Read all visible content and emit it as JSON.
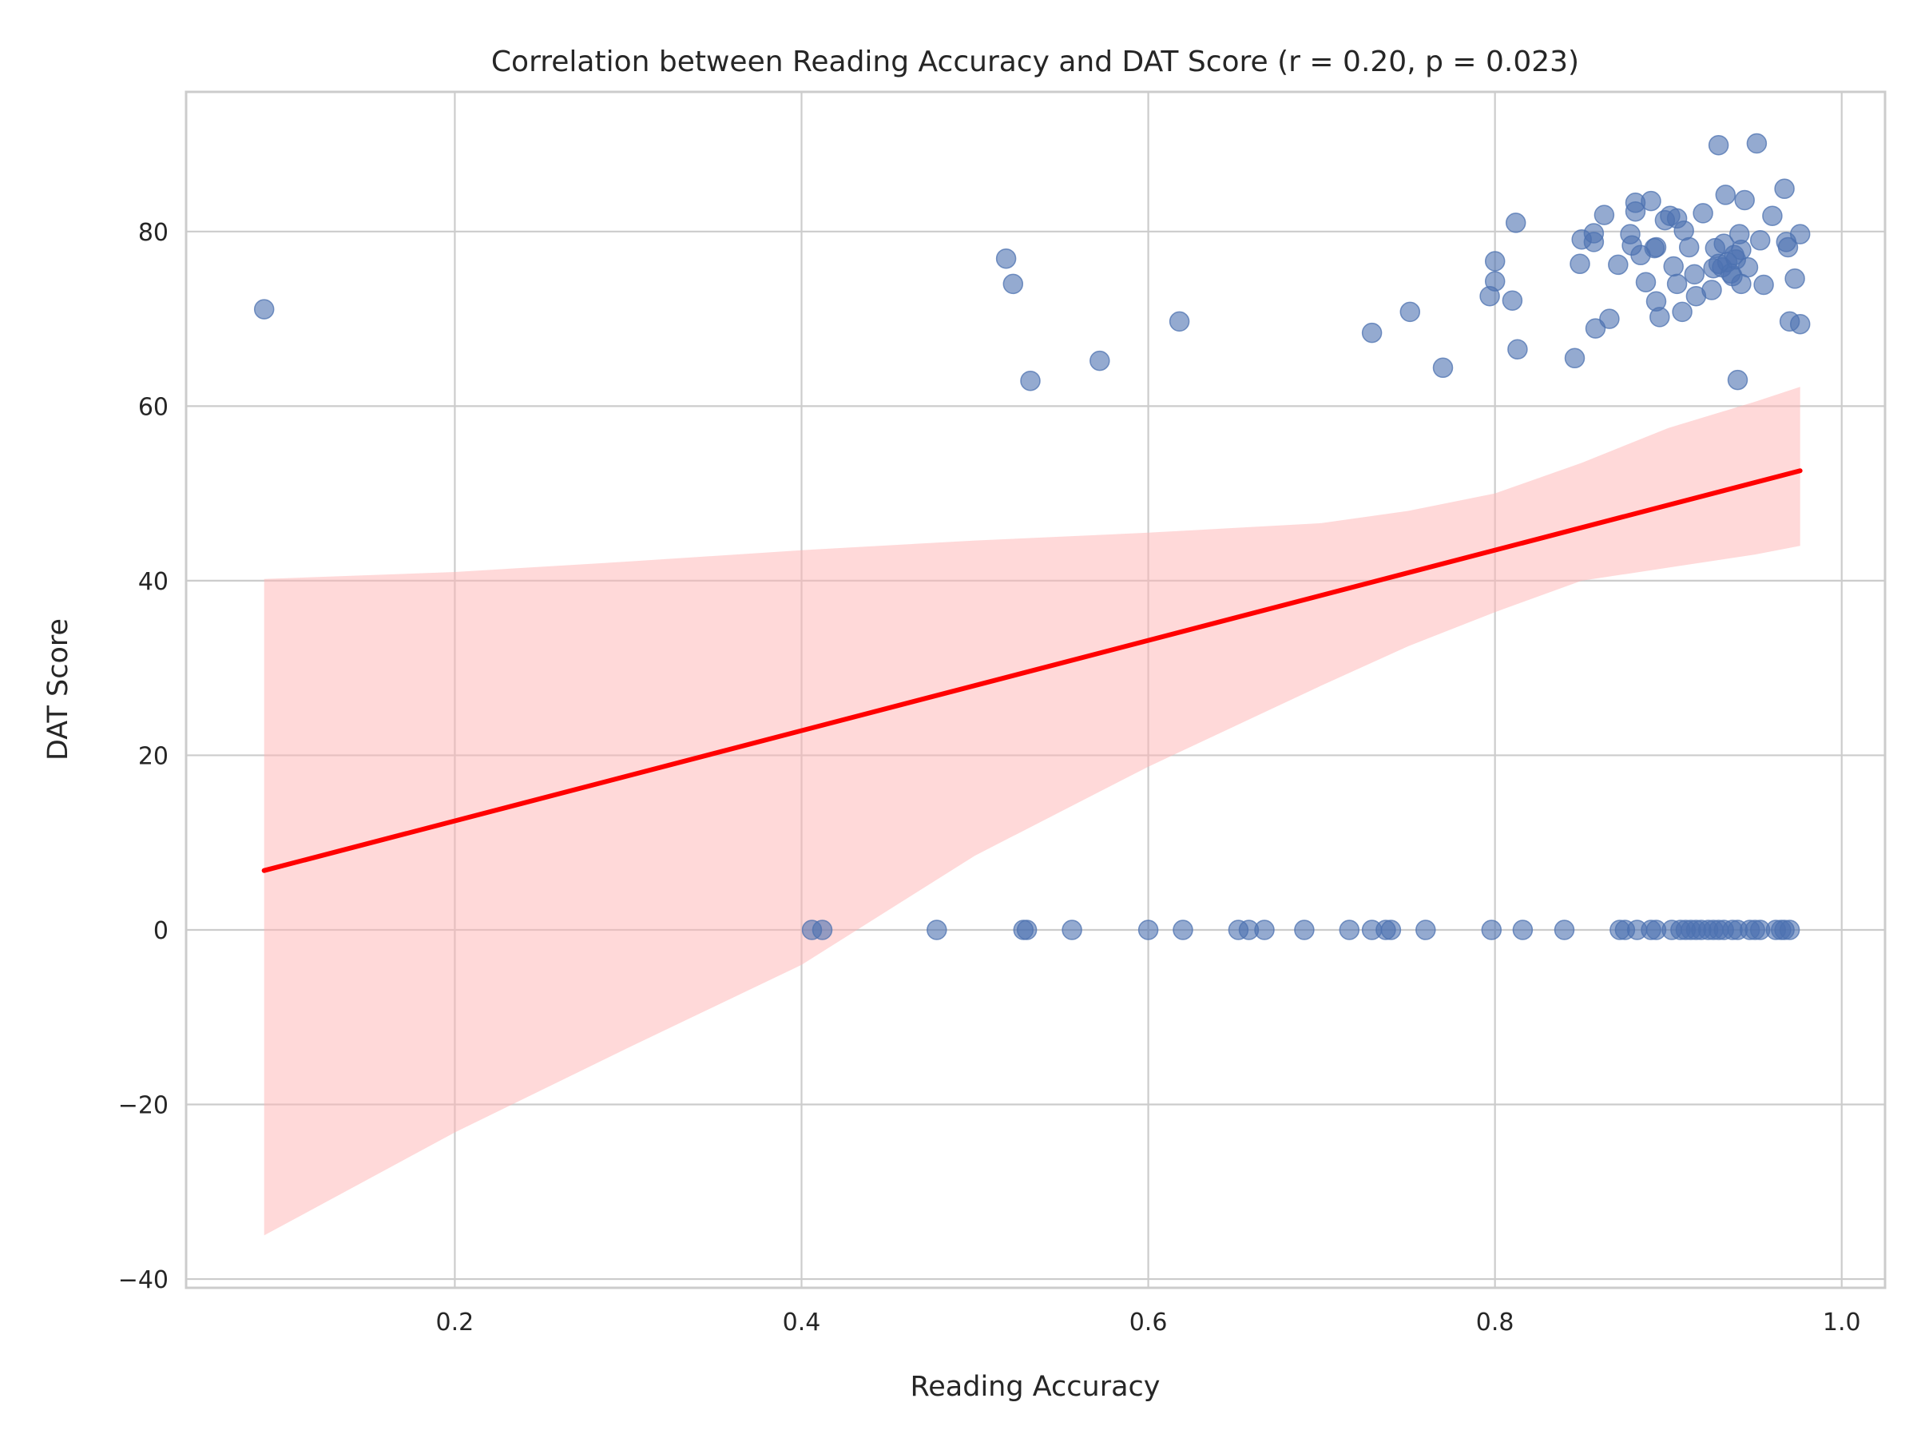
{
  "chart_data": {
    "type": "scatter",
    "title": "Correlation between Reading Accuracy and DAT Score (r = 0.20, p = 0.023)",
    "xlabel": "Reading Accuracy",
    "ylabel": "DAT Score",
    "xlim": [
      0.045,
      1.025
    ],
    "ylim": [
      -41,
      96
    ],
    "xticks": [
      0.2,
      0.4,
      0.6,
      0.8,
      1.0
    ],
    "xtick_labels": [
      "0.2",
      "0.4",
      "0.6",
      "0.8",
      "1.0"
    ],
    "yticks": [
      -40,
      -20,
      0,
      20,
      40,
      60,
      80
    ],
    "ytick_labels": [
      "−40",
      "−20",
      "0",
      "20",
      "40",
      "60",
      "80"
    ],
    "grid": true,
    "legend": "none",
    "colors": {
      "points": "#4c72b0",
      "regression_line": "#ff0000",
      "confidence_band": "#ffb3b3",
      "grid": "#cccccc",
      "text": "#262626"
    },
    "regression": {
      "x": [
        0.09,
        0.976
      ],
      "y": [
        6.8,
        52.6
      ]
    },
    "confidence_band": {
      "x": [
        0.09,
        0.2,
        0.3,
        0.4,
        0.5,
        0.6,
        0.7,
        0.75,
        0.8,
        0.85,
        0.9,
        0.95,
        0.976
      ],
      "upper": [
        40.2,
        41.0,
        42.2,
        43.5,
        44.6,
        45.5,
        46.6,
        48.0,
        50.0,
        53.5,
        57.5,
        60.5,
        62.2
      ],
      "lower": [
        -35.0,
        -23.2,
        -13.5,
        -4.0,
        8.5,
        18.7,
        28.0,
        32.5,
        36.4,
        40.0,
        41.5,
        43.0,
        44.0
      ]
    },
    "series": [
      {
        "points": [
          [
            0.09,
            71.1
          ],
          [
            0.518,
            76.9
          ],
          [
            0.522,
            74.0
          ],
          [
            0.532,
            62.9
          ],
          [
            0.572,
            65.2
          ],
          [
            0.618,
            69.7
          ],
          [
            0.729,
            68.4
          ],
          [
            0.751,
            70.8
          ],
          [
            0.77,
            64.4
          ],
          [
            0.797,
            72.6
          ],
          [
            0.8,
            74.3
          ],
          [
            0.8,
            76.6
          ],
          [
            0.81,
            72.1
          ],
          [
            0.812,
            81.0
          ],
          [
            0.813,
            66.5
          ],
          [
            0.846,
            65.5
          ],
          [
            0.849,
            76.3
          ],
          [
            0.85,
            79.1
          ],
          [
            0.857,
            78.8
          ],
          [
            0.857,
            79.8
          ],
          [
            0.858,
            68.9
          ],
          [
            0.863,
            81.9
          ],
          [
            0.866,
            70.0
          ],
          [
            0.871,
            76.2
          ],
          [
            0.878,
            79.7
          ],
          [
            0.879,
            78.4
          ],
          [
            0.881,
            83.3
          ],
          [
            0.881,
            82.3
          ],
          [
            0.884,
            77.3
          ],
          [
            0.887,
            74.2
          ],
          [
            0.89,
            83.5
          ],
          [
            0.892,
            78.1
          ],
          [
            0.893,
            72.0
          ],
          [
            0.893,
            78.2
          ],
          [
            0.895,
            70.2
          ],
          [
            0.898,
            81.3
          ],
          [
            0.901,
            81.8
          ],
          [
            0.903,
            76.0
          ],
          [
            0.905,
            81.5
          ],
          [
            0.905,
            74.0
          ],
          [
            0.908,
            70.8
          ],
          [
            0.909,
            80.1
          ],
          [
            0.912,
            78.2
          ],
          [
            0.915,
            75.1
          ],
          [
            0.916,
            72.6
          ],
          [
            0.92,
            82.1
          ],
          [
            0.925,
            73.3
          ],
          [
            0.926,
            75.8
          ],
          [
            0.927,
            78.1
          ],
          [
            0.929,
            76.3
          ],
          [
            0.929,
            89.9
          ],
          [
            0.931,
            75.9
          ],
          [
            0.932,
            78.6
          ],
          [
            0.933,
            84.2
          ],
          [
            0.934,
            76.5
          ],
          [
            0.936,
            75.2
          ],
          [
            0.937,
            74.9
          ],
          [
            0.938,
            77.3
          ],
          [
            0.939,
            76.8
          ],
          [
            0.94,
            63.0
          ],
          [
            0.941,
            79.7
          ],
          [
            0.942,
            74.0
          ],
          [
            0.942,
            77.9
          ],
          [
            0.944,
            83.6
          ],
          [
            0.946,
            75.9
          ],
          [
            0.951,
            90.1
          ],
          [
            0.953,
            79.0
          ],
          [
            0.955,
            73.9
          ],
          [
            0.96,
            81.8
          ],
          [
            0.967,
            84.9
          ],
          [
            0.968,
            78.8
          ],
          [
            0.969,
            78.2
          ],
          [
            0.97,
            69.7
          ],
          [
            0.973,
            74.6
          ],
          [
            0.976,
            79.7
          ],
          [
            0.976,
            69.4
          ],
          [
            0.406,
            0
          ],
          [
            0.412,
            0
          ],
          [
            0.478,
            0
          ],
          [
            0.528,
            0
          ],
          [
            0.53,
            0
          ],
          [
            0.556,
            0
          ],
          [
            0.6,
            0
          ],
          [
            0.62,
            0
          ],
          [
            0.652,
            0
          ],
          [
            0.658,
            0
          ],
          [
            0.667,
            0
          ],
          [
            0.69,
            0
          ],
          [
            0.716,
            0
          ],
          [
            0.729,
            0
          ],
          [
            0.737,
            0
          ],
          [
            0.74,
            0
          ],
          [
            0.76,
            0
          ],
          [
            0.798,
            0
          ],
          [
            0.816,
            0
          ],
          [
            0.84,
            0
          ],
          [
            0.872,
            0
          ],
          [
            0.875,
            0
          ],
          [
            0.882,
            0
          ],
          [
            0.89,
            0
          ],
          [
            0.893,
            0
          ],
          [
            0.902,
            0
          ],
          [
            0.907,
            0
          ],
          [
            0.91,
            0
          ],
          [
            0.913,
            0
          ],
          [
            0.916,
            0
          ],
          [
            0.919,
            0
          ],
          [
            0.923,
            0
          ],
          [
            0.926,
            0
          ],
          [
            0.929,
            0
          ],
          [
            0.932,
            0
          ],
          [
            0.937,
            0
          ],
          [
            0.94,
            0
          ],
          [
            0.947,
            0
          ],
          [
            0.95,
            0
          ],
          [
            0.953,
            0
          ],
          [
            0.962,
            0
          ],
          [
            0.965,
            0
          ],
          [
            0.967,
            0
          ],
          [
            0.97,
            0
          ]
        ]
      }
    ]
  }
}
